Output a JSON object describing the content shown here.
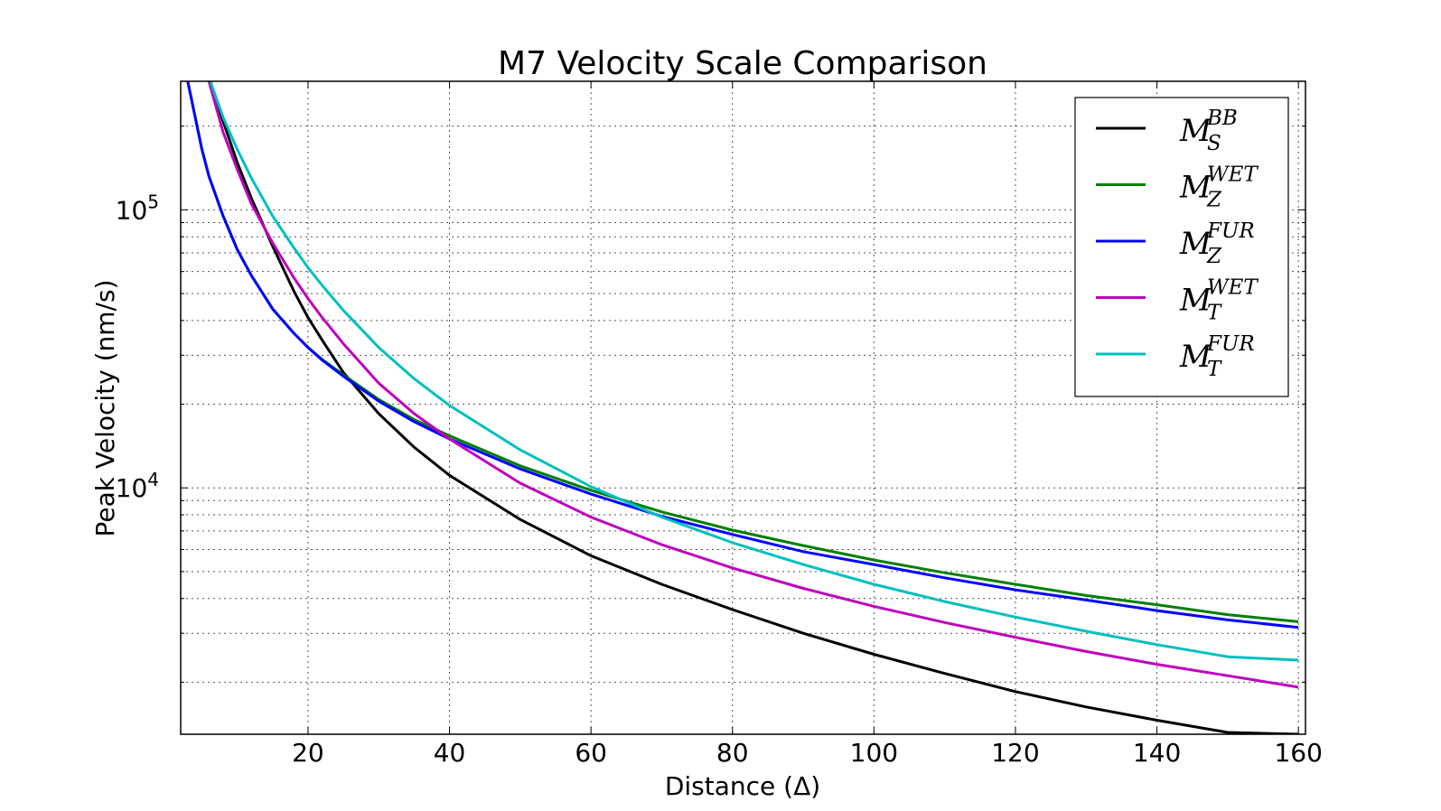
{
  "chart_data": {
    "type": "line",
    "title": "M7 Velocity Scale Comparison",
    "xlabel": "Distance (Δ)",
    "ylabel": "Peak Velocity (nm/s)",
    "xlim": [
      2,
      161
    ],
    "ylim": [
      1300,
      290000
    ],
    "yscale": "log",
    "grid": true,
    "legend_position": "top-right",
    "x_ticks": [
      20,
      40,
      60,
      80,
      100,
      120,
      140,
      160
    ],
    "x_tick_labels": [
      "20",
      "40",
      "60",
      "80",
      "100",
      "120",
      "140",
      "160"
    ],
    "y_ticks": [
      10000,
      100000
    ],
    "y_tick_labels": [
      {
        "base": "10",
        "exp": "4"
      },
      {
        "base": "10",
        "exp": "5"
      }
    ],
    "x": [
      3,
      5,
      6,
      8,
      10,
      12,
      15,
      18,
      20,
      22,
      25,
      30,
      35,
      40,
      50,
      60,
      70,
      80,
      90,
      100,
      110,
      120,
      130,
      140,
      150,
      160
    ],
    "series": [
      {
        "name": "M_S^BB",
        "base": "M",
        "sub": "S",
        "sup": "BB",
        "color": "#000000",
        "values": [
          null,
          null,
          300000,
          208000,
          148000,
          110000,
          74000,
          51000,
          41000,
          34000,
          26000,
          18500,
          14000,
          11100,
          7700,
          5700,
          4500,
          3650,
          3000,
          2520,
          2150,
          1850,
          1630,
          1460,
          1320,
          1300
        ]
      },
      {
        "name": "M_Z^WET",
        "base": "M",
        "sub": "Z",
        "sup": "WET",
        "color": "#008000",
        "values": [
          290000,
          165000,
          132000,
          95000,
          72000,
          58000,
          44000,
          36000,
          32000,
          29000,
          25500,
          20800,
          17600,
          15400,
          12000,
          9800,
          8200,
          7050,
          6200,
          5500,
          4950,
          4500,
          4100,
          3800,
          3500,
          3300
        ]
      },
      {
        "name": "M_Z^FUR",
        "base": "M",
        "sub": "Z",
        "sup": "FUR",
        "color": "#0000ff",
        "values": [
          290000,
          165000,
          132000,
          95000,
          72000,
          58000,
          44000,
          36000,
          32000,
          28800,
          25200,
          20500,
          17300,
          15000,
          11700,
          9500,
          7900,
          6800,
          5900,
          5300,
          4750,
          4300,
          3950,
          3620,
          3350,
          3150
        ]
      },
      {
        "name": "M_T^WET",
        "base": "M",
        "sub": "T",
        "sup": "WET",
        "color": "#bf00bf",
        "values": [
          null,
          null,
          290000,
          190000,
          140000,
          105000,
          76000,
          57000,
          48000,
          41000,
          33000,
          23800,
          18500,
          15000,
          10400,
          7850,
          6250,
          5150,
          4350,
          3750,
          3280,
          2900,
          2580,
          2320,
          2110,
          1920
        ]
      },
      {
        "name": "M_T^FUR",
        "base": "M",
        "sub": "T",
        "sup": "FUR",
        "color": "#00bfbf",
        "values": [
          null,
          null,
          300000,
          215000,
          165000,
          130000,
          95000,
          73000,
          62000,
          53500,
          43500,
          32000,
          24700,
          19800,
          13700,
          10100,
          7850,
          6350,
          5300,
          4500,
          3900,
          3430,
          3050,
          2730,
          2470,
          2400
        ]
      }
    ]
  }
}
